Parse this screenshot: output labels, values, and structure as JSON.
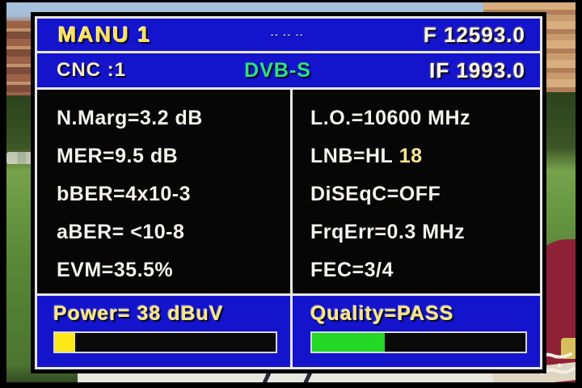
{
  "colors": {
    "osd_blue": "#1414cd",
    "panel_black": "#060606",
    "text_white": "#f4f2ea",
    "title_yellow": "#ffe14d",
    "pale_yellow": "#ffe97e",
    "dvb_green": "#2fe07f",
    "bar_yellow": "#ffe818",
    "bar_green": "#23d926"
  },
  "row1": {
    "title": "MANU 1",
    "dashes": "-- -- --",
    "frequency": "F 12593.0"
  },
  "row2": {
    "cnc": "CNC :1",
    "standard": "DVB-S",
    "if_value": "IF 1993.0"
  },
  "left_panel": {
    "rows": [
      "N.Marg=3.2 dB",
      "MER=9.5 dB",
      "bBER=4x10-3",
      "aBER= <10-8",
      "EVM=35.5%"
    ]
  },
  "right_panel": {
    "rows": [
      {
        "text": "L.O.=10600 MHz",
        "highlight": ""
      },
      {
        "text": "LNB=HL",
        "highlight": " 18"
      },
      {
        "text": "DiSEqC=OFF",
        "highlight": ""
      },
      {
        "text": "FrqErr=0.3 MHz",
        "highlight": ""
      },
      {
        "text": "FEC=3/4",
        "highlight": ""
      }
    ]
  },
  "power": {
    "label": "Power= 38 dBuV",
    "bar_percent": 9
  },
  "quality": {
    "label": "Quality=PASS",
    "bar_percent": 34
  }
}
